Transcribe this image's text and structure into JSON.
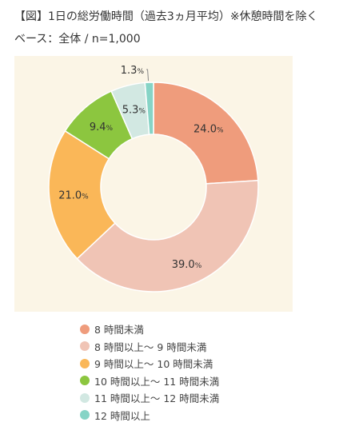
{
  "title": "【図】1日の総労働時間（過去3ヵ月平均）※休憩時間を除く",
  "subtitle": "ベース：全体 / n=1,000",
  "chart_data": {
    "type": "pie",
    "variant": "donut",
    "start": "top, clockwise",
    "label_suffix": "%",
    "slices": [
      {
        "label": "8 時間未満",
        "value": 24.0,
        "display": "24.0",
        "color": "#ef9c7c"
      },
      {
        "label": "8 時間以上～ 9 時間未満",
        "value": 39.0,
        "display": "39.0",
        "color": "#f0c4b5"
      },
      {
        "label": "9 時間以上～ 10 時間未満",
        "value": 21.0,
        "display": "21.0",
        "color": "#fab758"
      },
      {
        "label": "10 時間以上～ 11 時間未満",
        "value": 9.4,
        "display": "9.4",
        "color": "#8cc63f"
      },
      {
        "label": "11 時間以上～ 12 時間未満",
        "value": 5.3,
        "display": "5.3",
        "color": "#d2e8e2"
      },
      {
        "label": "12 時間以上",
        "value": 1.3,
        "display": "1.3",
        "color": "#86d4c6"
      }
    ]
  }
}
